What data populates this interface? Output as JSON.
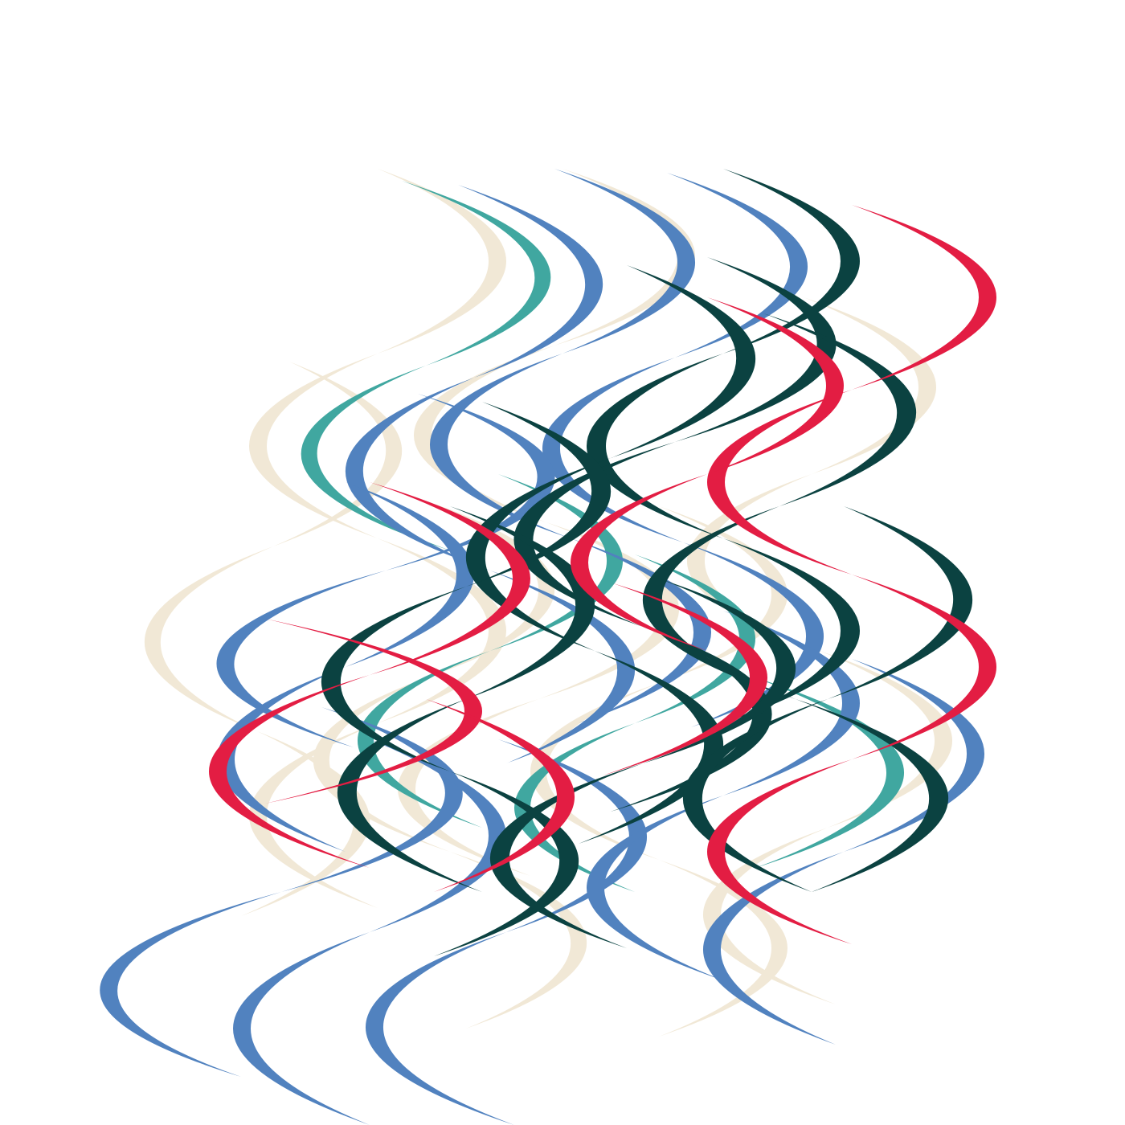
{
  "background": "#ffffff",
  "palette": {
    "cream": "#f1e8d6",
    "teal": "#40a7a0",
    "blue": "#5182bf",
    "dark_green": "#0b4241",
    "red": "#e31d43"
  },
  "shapes": [
    {
      "kind": "crescent",
      "color": "cream"
    },
    {
      "kind": "crescent",
      "color": "teal"
    },
    {
      "kind": "crescent",
      "color": "blue"
    },
    {
      "kind": "crescent",
      "color": "dark_green"
    },
    {
      "kind": "crescent",
      "color": "red"
    }
  ]
}
